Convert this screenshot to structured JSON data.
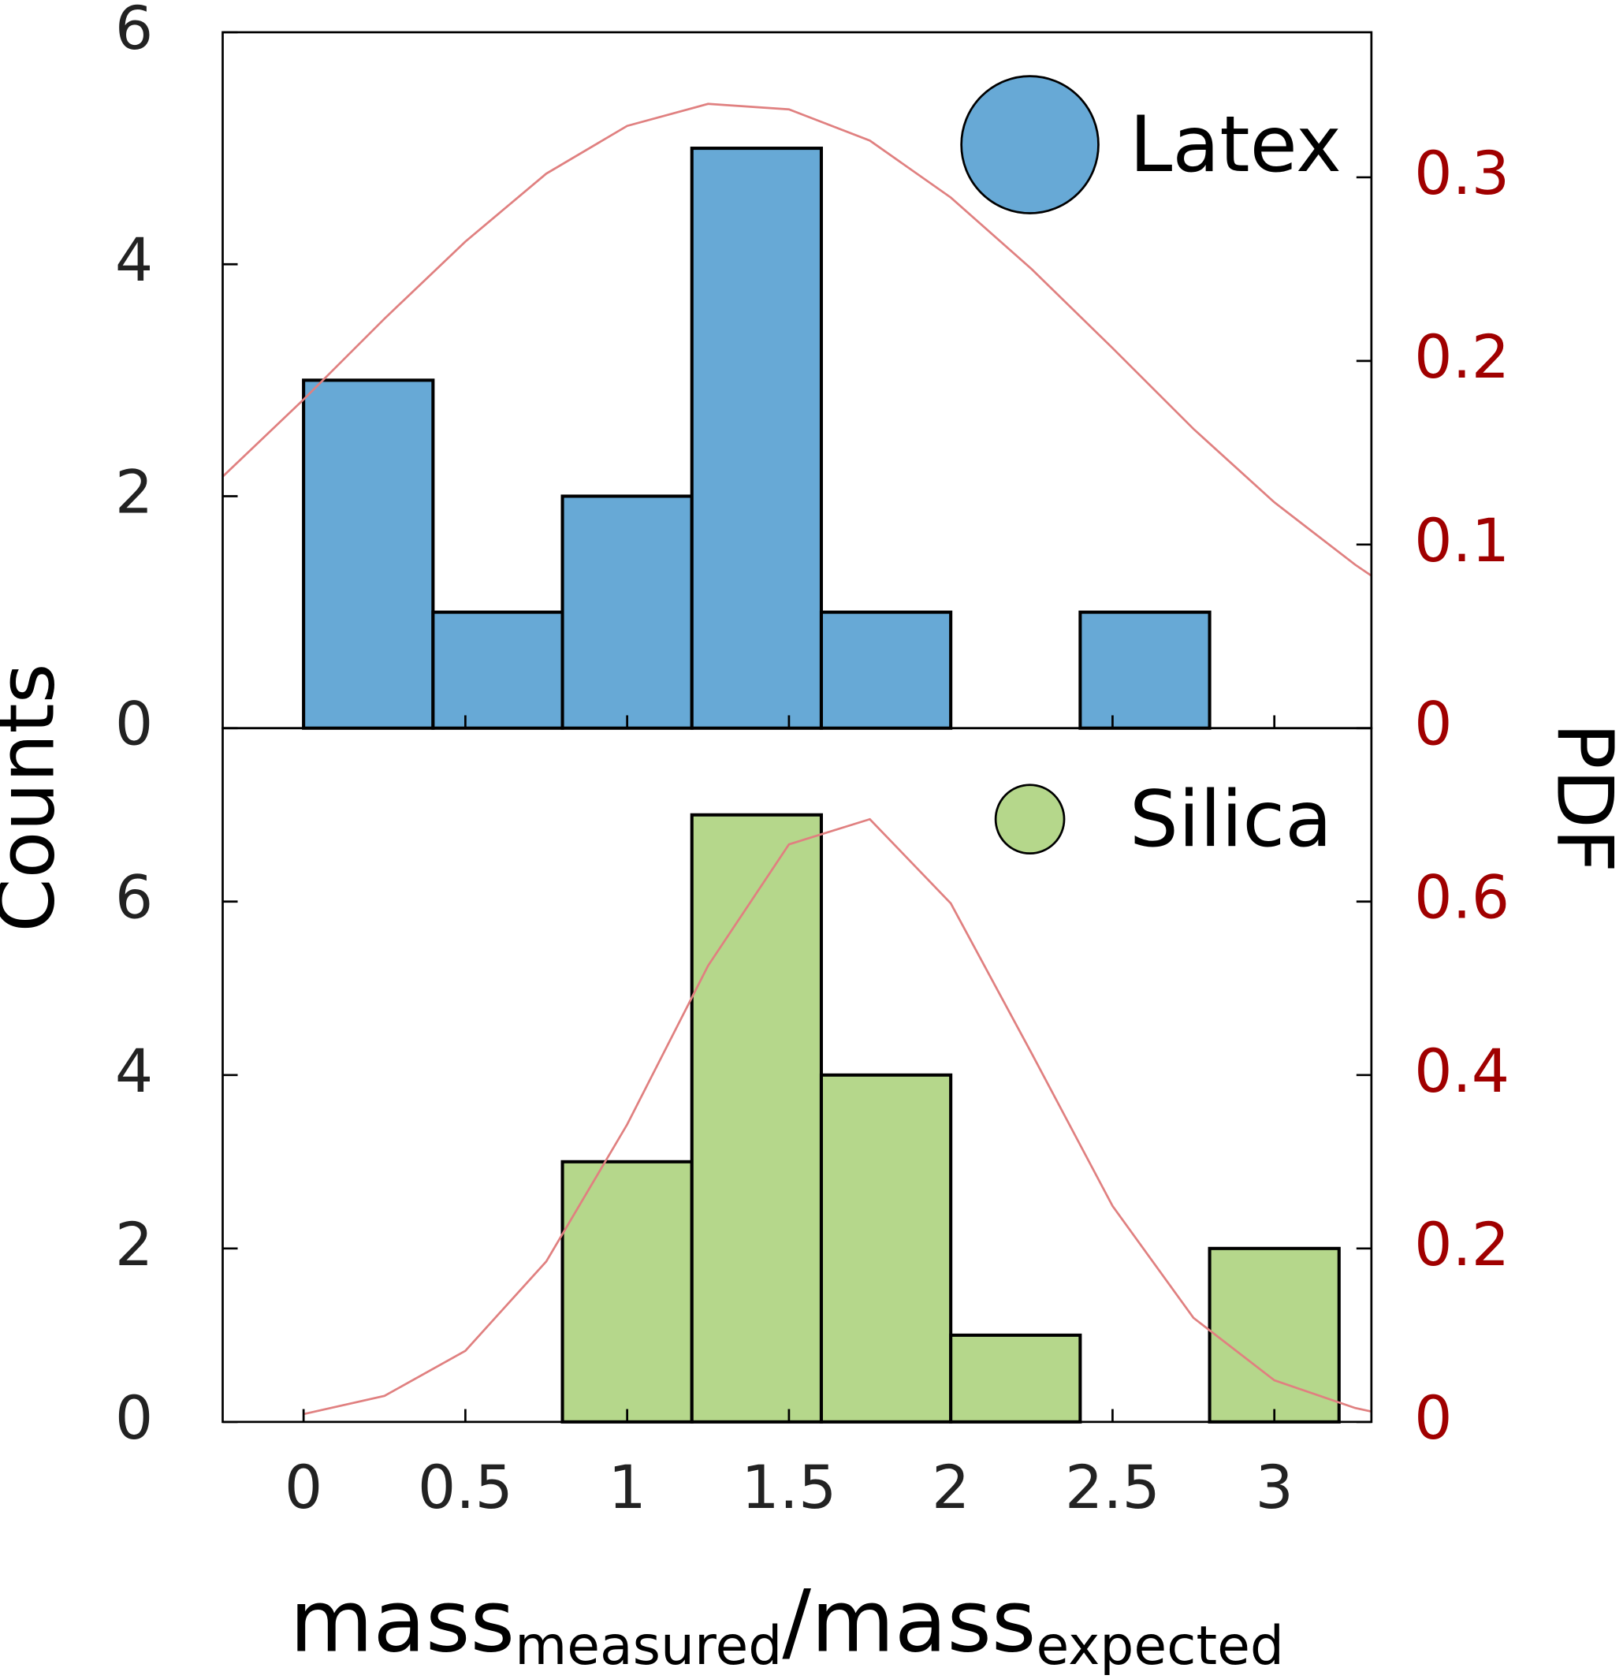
{
  "figure": {
    "ylabel": "Counts",
    "y2label": "PDF",
    "xlabel_parts": [
      "mass",
      "measured",
      "/mass",
      "expected"
    ]
  },
  "chart_data": [
    {
      "type": "histogram",
      "legend": "upper right",
      "xlim": [
        -0.25,
        3.3
      ],
      "ylim": [
        0,
        6
      ],
      "yticks": [
        0,
        2,
        4,
        6
      ],
      "y2lim": [
        0,
        0.379
      ],
      "y2ticks": [
        0,
        0.1,
        0.2,
        0.3
      ],
      "bins": [
        0,
        0.4,
        0.8,
        1.2,
        1.6,
        2.0,
        2.4,
        2.8,
        3.2
      ],
      "series": [
        {
          "name": "Latex",
          "color": "#67a9d6",
          "values": [
            3,
            1,
            2,
            5,
            1,
            0,
            1,
            0
          ]
        },
        {
          "type": "line",
          "axis": "y2",
          "color": "#e08080",
          "x": [
            -0.25,
            0,
            0.25,
            0.5,
            0.75,
            1.0,
            1.25,
            1.5,
            1.75,
            2.0,
            2.25,
            2.5,
            2.75,
            3.0,
            3.25,
            3.3
          ],
          "values": [
            0.137,
            0.179,
            0.223,
            0.265,
            0.302,
            0.328,
            0.34,
            0.337,
            0.32,
            0.289,
            0.25,
            0.207,
            0.163,
            0.123,
            0.089,
            0.083
          ]
        }
      ]
    },
    {
      "type": "histogram",
      "legend": "upper right",
      "xlim": [
        -0.25,
        3.3
      ],
      "xticks": [
        0,
        0.5,
        1,
        1.5,
        2,
        2.5,
        3
      ],
      "ylim": [
        0,
        8
      ],
      "yticks": [
        0,
        2,
        4,
        6
      ],
      "y2lim": [
        0,
        0.8
      ],
      "y2ticks": [
        0,
        0.2,
        0.4,
        0.6
      ],
      "bins": [
        0,
        0.4,
        0.8,
        1.2,
        1.6,
        2.0,
        2.4,
        2.8,
        3.2
      ],
      "series": [
        {
          "name": "Silica",
          "color": "#b5d78b",
          "values": [
            0,
            0,
            3,
            7,
            4,
            1,
            0,
            2
          ]
        },
        {
          "type": "line",
          "axis": "y2",
          "color": "#e08080",
          "x": [
            0,
            0.25,
            0.5,
            0.75,
            1.0,
            1.25,
            1.5,
            1.75,
            2.0,
            2.25,
            2.5,
            2.75,
            3.0,
            3.25,
            3.3
          ],
          "values": [
            0.009,
            0.03,
            0.082,
            0.185,
            0.343,
            0.526,
            0.666,
            0.695,
            0.598,
            0.425,
            0.249,
            0.12,
            0.048,
            0.016,
            0.012
          ]
        }
      ]
    }
  ]
}
